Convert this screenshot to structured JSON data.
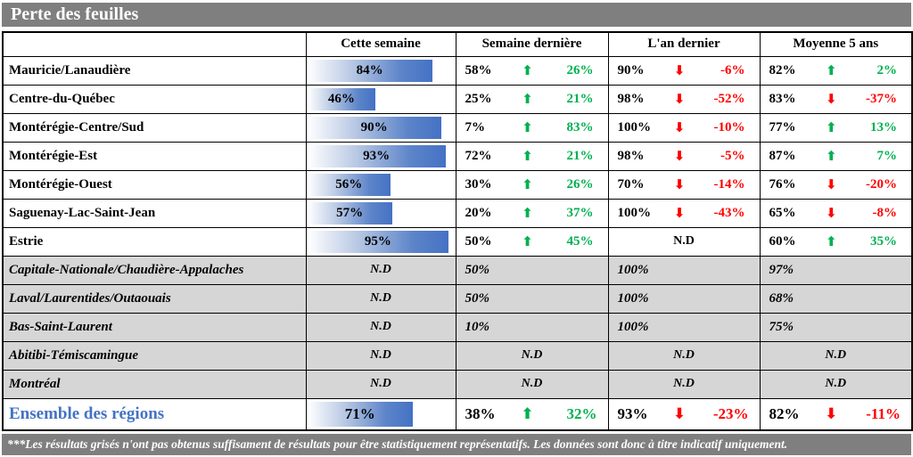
{
  "title": "Perte des feuilles",
  "footer": "***Les résultats grisés n'ont pas obtenus suffisament de résultats pour être statistiquement représentatifs. Les données sont donc à titre indicatif uniquement.",
  "colors": {
    "positive_green": "#00B050",
    "negative_red": "#FF0000",
    "bar_blue": "#4472C4",
    "title_bar_gray": "#7F7F7F",
    "grayed_row_bg": "#D6D6D6",
    "total_row_blue": "#4472C4"
  },
  "icons": {
    "up_arrow": "⬆",
    "down_arrow": "⬇"
  },
  "chart_data": {
    "type": "table",
    "title": "Perte des feuilles",
    "columns": [
      "Cette semaine",
      "Semaine dernière",
      "L'an dernier",
      "Moyenne 5 ans"
    ],
    "stat_format": "each period column shows: value, trend arrow, change in percentage points",
    "rows": [
      {
        "name": "Mauricie/Lanaudière",
        "style": "normal",
        "this_week": "84%",
        "bar_percent": 84,
        "stats": [
          {
            "value": "58%",
            "dir": "up",
            "change": "26%"
          },
          {
            "value": "90%",
            "dir": "down",
            "change": "-6%"
          },
          {
            "value": "82%",
            "dir": "up",
            "change": "2%"
          }
        ]
      },
      {
        "name": "Centre-du-Québec",
        "style": "normal",
        "this_week": "46%",
        "bar_percent": 46,
        "stats": [
          {
            "value": "25%",
            "dir": "up",
            "change": "21%"
          },
          {
            "value": "98%",
            "dir": "down",
            "change": "-52%"
          },
          {
            "value": "83%",
            "dir": "down",
            "change": "-37%"
          }
        ]
      },
      {
        "name": "Montérégie-Centre/Sud",
        "style": "normal",
        "this_week": "90%",
        "bar_percent": 90,
        "stats": [
          {
            "value": "7%",
            "dir": "up",
            "change": "83%"
          },
          {
            "value": "100%",
            "dir": "down",
            "change": "-10%"
          },
          {
            "value": "77%",
            "dir": "up",
            "change": "13%"
          }
        ]
      },
      {
        "name": "Montérégie-Est",
        "style": "normal",
        "this_week": "93%",
        "bar_percent": 93,
        "stats": [
          {
            "value": "72%",
            "dir": "up",
            "change": "21%"
          },
          {
            "value": "98%",
            "dir": "down",
            "change": "-5%"
          },
          {
            "value": "87%",
            "dir": "up",
            "change": "7%"
          }
        ]
      },
      {
        "name": "Montérégie-Ouest",
        "style": "normal",
        "this_week": "56%",
        "bar_percent": 56,
        "stats": [
          {
            "value": "30%",
            "dir": "up",
            "change": "26%"
          },
          {
            "value": "70%",
            "dir": "down",
            "change": "-14%"
          },
          {
            "value": "76%",
            "dir": "down",
            "change": "-20%"
          }
        ]
      },
      {
        "name": "Saguenay-Lac-Saint-Jean",
        "style": "normal",
        "this_week": "57%",
        "bar_percent": 57,
        "stats": [
          {
            "value": "20%",
            "dir": "up",
            "change": "37%"
          },
          {
            "value": "100%",
            "dir": "down",
            "change": "-43%"
          },
          {
            "value": "65%",
            "dir": "down",
            "change": "-8%"
          }
        ]
      },
      {
        "name": "Estrie",
        "style": "normal",
        "this_week": "95%",
        "bar_percent": 95,
        "stats": [
          {
            "value": "50%",
            "dir": "up",
            "change": "45%"
          },
          {
            "nd": "N.D"
          },
          {
            "value": "60%",
            "dir": "up",
            "change": "35%"
          }
        ]
      },
      {
        "name": "Capitale-Nationale/Chaudière-Appalaches",
        "style": "grayed",
        "this_week": "N.D",
        "stats": [
          {
            "value": "50%"
          },
          {
            "value": "100%"
          },
          {
            "value": "97%"
          }
        ]
      },
      {
        "name": "Laval/Laurentides/Outaouais",
        "style": "grayed",
        "this_week": "N.D",
        "stats": [
          {
            "value": "50%"
          },
          {
            "value": "100%"
          },
          {
            "value": "68%"
          }
        ]
      },
      {
        "name": "Bas-Saint-Laurent",
        "style": "grayed",
        "this_week": "N.D",
        "stats": [
          {
            "value": "10%"
          },
          {
            "value": "100%"
          },
          {
            "value": "75%"
          }
        ]
      },
      {
        "name": "Abitibi-Témiscamingue",
        "style": "grayed",
        "this_week": "N.D",
        "stats": [
          {
            "nd": "N.D"
          },
          {
            "nd": "N.D"
          },
          {
            "nd": "N.D"
          }
        ]
      },
      {
        "name": "Montréal",
        "style": "grayed",
        "this_week": "N.D",
        "stats": [
          {
            "nd": "N.D"
          },
          {
            "nd": "N.D"
          },
          {
            "nd": "N.D"
          }
        ]
      },
      {
        "name": "Ensemble des régions",
        "style": "total",
        "this_week": "71%",
        "bar_percent": 71,
        "stats": [
          {
            "value": "38%",
            "dir": "up",
            "change": "32%"
          },
          {
            "value": "93%",
            "dir": "down",
            "change": "-23%"
          },
          {
            "value": "82%",
            "dir": "down",
            "change": "-11%"
          }
        ]
      }
    ]
  }
}
